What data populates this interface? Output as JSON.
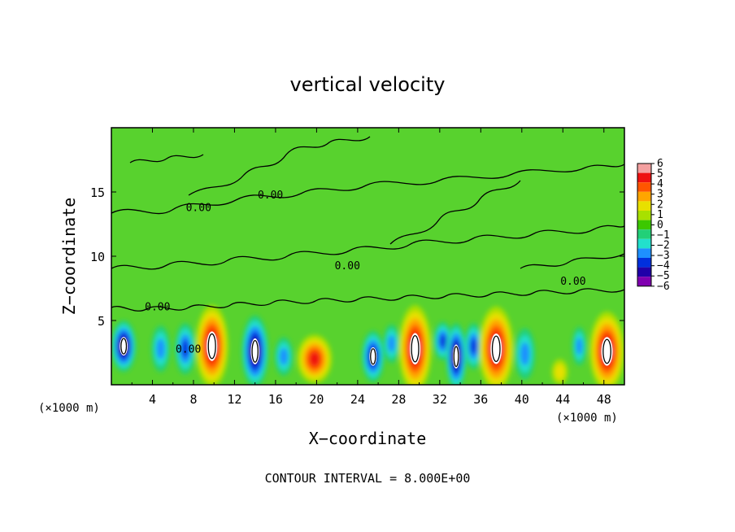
{
  "chart_data": {
    "type": "heatmap",
    "title": "vertical velocity",
    "xlabel": "X−coordinate",
    "ylabel": "Z−coordinate",
    "x_unit_left": "(×1000 m)",
    "x_unit_right": "(×1000 m)",
    "footer": "CONTOUR INTERVAL = 8.000E+00",
    "xlim": [
      0,
      50
    ],
    "ylim": [
      0,
      20
    ],
    "xticks": [
      4,
      8,
      12,
      16,
      20,
      24,
      28,
      32,
      36,
      40,
      44,
      48
    ],
    "yticks": [
      5,
      10,
      15
    ],
    "contour_labels": [
      {
        "text": "0.00",
        "x": 8.5,
        "z": 13.5
      },
      {
        "text": "0.00",
        "x": 4.5,
        "z": 5.8
      },
      {
        "text": "0.00",
        "x": 15.5,
        "z": 14.5
      },
      {
        "text": "0.00",
        "x": 23.0,
        "z": 9.0
      },
      {
        "text": "0.00",
        "x": 45.0,
        "z": 7.8
      },
      {
        "text": "0.00",
        "x": 7.5,
        "z": 2.5
      }
    ],
    "colorbar": {
      "levels": [
        "6",
        "5",
        "4",
        "3",
        "2",
        "1",
        "0",
        "−1",
        "−2",
        "−3",
        "−4",
        "−5",
        "−6"
      ],
      "colors": [
        "#f4a0a0",
        "#ee1111",
        "#ff5500",
        "#ffa500",
        "#e8e000",
        "#a8e000",
        "#3cc800",
        "#22d078",
        "#22e0cc",
        "#1e90ff",
        "#0030dd",
        "#2000a8",
        "#8000b0"
      ]
    },
    "cells": [
      {
        "x": 1.2,
        "z": 3.0,
        "w": -6,
        "rx": 1.2,
        "rz": 2.0,
        "core": true
      },
      {
        "x": 4.8,
        "z": 2.8,
        "w": -3,
        "rx": 0.9,
        "rz": 1.8
      },
      {
        "x": 7.2,
        "z": 2.8,
        "w": -4,
        "rx": 1.0,
        "rz": 2.0
      },
      {
        "x": 9.8,
        "z": 3.0,
        "w": 6,
        "rx": 1.6,
        "rz": 3.2,
        "core": true
      },
      {
        "x": 14.0,
        "z": 2.6,
        "w": -6,
        "rx": 1.3,
        "rz": 2.8,
        "core": true
      },
      {
        "x": 16.8,
        "z": 2.2,
        "w": -3,
        "rx": 0.9,
        "rz": 1.5
      },
      {
        "x": 19.8,
        "z": 2.0,
        "w": 5,
        "rx": 1.7,
        "rz": 1.9
      },
      {
        "x": 25.5,
        "z": 2.2,
        "w": -5,
        "rx": 1.1,
        "rz": 2.0,
        "core": true
      },
      {
        "x": 27.3,
        "z": 3.2,
        "w": -3,
        "rx": 0.8,
        "rz": 1.5
      },
      {
        "x": 29.6,
        "z": 2.8,
        "w": 6,
        "rx": 1.6,
        "rz": 3.4,
        "core": true
      },
      {
        "x": 32.3,
        "z": 3.4,
        "w": -4,
        "rx": 0.9,
        "rz": 1.5
      },
      {
        "x": 33.6,
        "z": 2.2,
        "w": -6,
        "rx": 1.0,
        "rz": 2.6,
        "core": true
      },
      {
        "x": 35.3,
        "z": 3.0,
        "w": -4,
        "rx": 0.9,
        "rz": 1.8
      },
      {
        "x": 37.5,
        "z": 2.8,
        "w": 6,
        "rx": 1.7,
        "rz": 3.3,
        "core": true
      },
      {
        "x": 40.3,
        "z": 2.4,
        "w": -3,
        "rx": 1.0,
        "rz": 2.0
      },
      {
        "x": 43.7,
        "z": 1.0,
        "w": 2,
        "rx": 0.8,
        "rz": 1.0
      },
      {
        "x": 45.6,
        "z": 3.0,
        "w": -3,
        "rx": 0.7,
        "rz": 1.5
      },
      {
        "x": 48.3,
        "z": 2.6,
        "w": 6,
        "rx": 1.7,
        "rz": 3.1,
        "core": true
      }
    ]
  }
}
